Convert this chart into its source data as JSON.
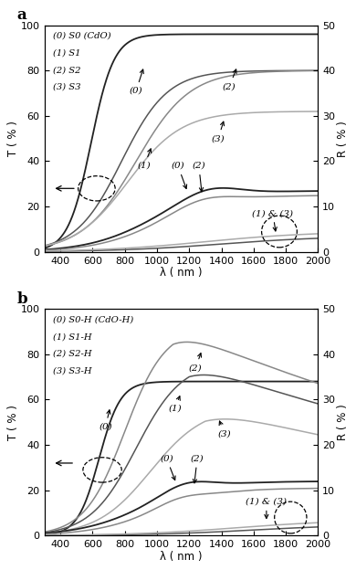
{
  "xlim": [
    300,
    2000
  ],
  "ylim_T": [
    0,
    100
  ],
  "ylim_R": [
    0,
    50
  ],
  "xlabel": "λ ( nm )",
  "ylabel_T": "T ( % )",
  "ylabel_R": "R ( % )",
  "xticks": [
    400,
    600,
    800,
    1000,
    1200,
    1400,
    1600,
    1800,
    2000
  ],
  "yticks_T": [
    0,
    20,
    40,
    60,
    80,
    100
  ],
  "yticks_R": [
    0,
    10,
    20,
    30,
    40,
    50
  ],
  "panel_a_legend": [
    "(0) S0 (CdO)",
    "(1) S1",
    "(2) S2",
    "(3) S3"
  ],
  "panel_b_legend": [
    "(0) S0-H (CdO-H)",
    "(1) S1-H",
    "(2) S2-H",
    "(3) S3-H"
  ],
  "panel_labels": [
    "a",
    "b"
  ],
  "colors": [
    "#222222",
    "#555555",
    "#888888",
    "#aaaaaa"
  ],
  "lws": [
    1.3,
    1.1,
    1.1,
    1.1
  ]
}
